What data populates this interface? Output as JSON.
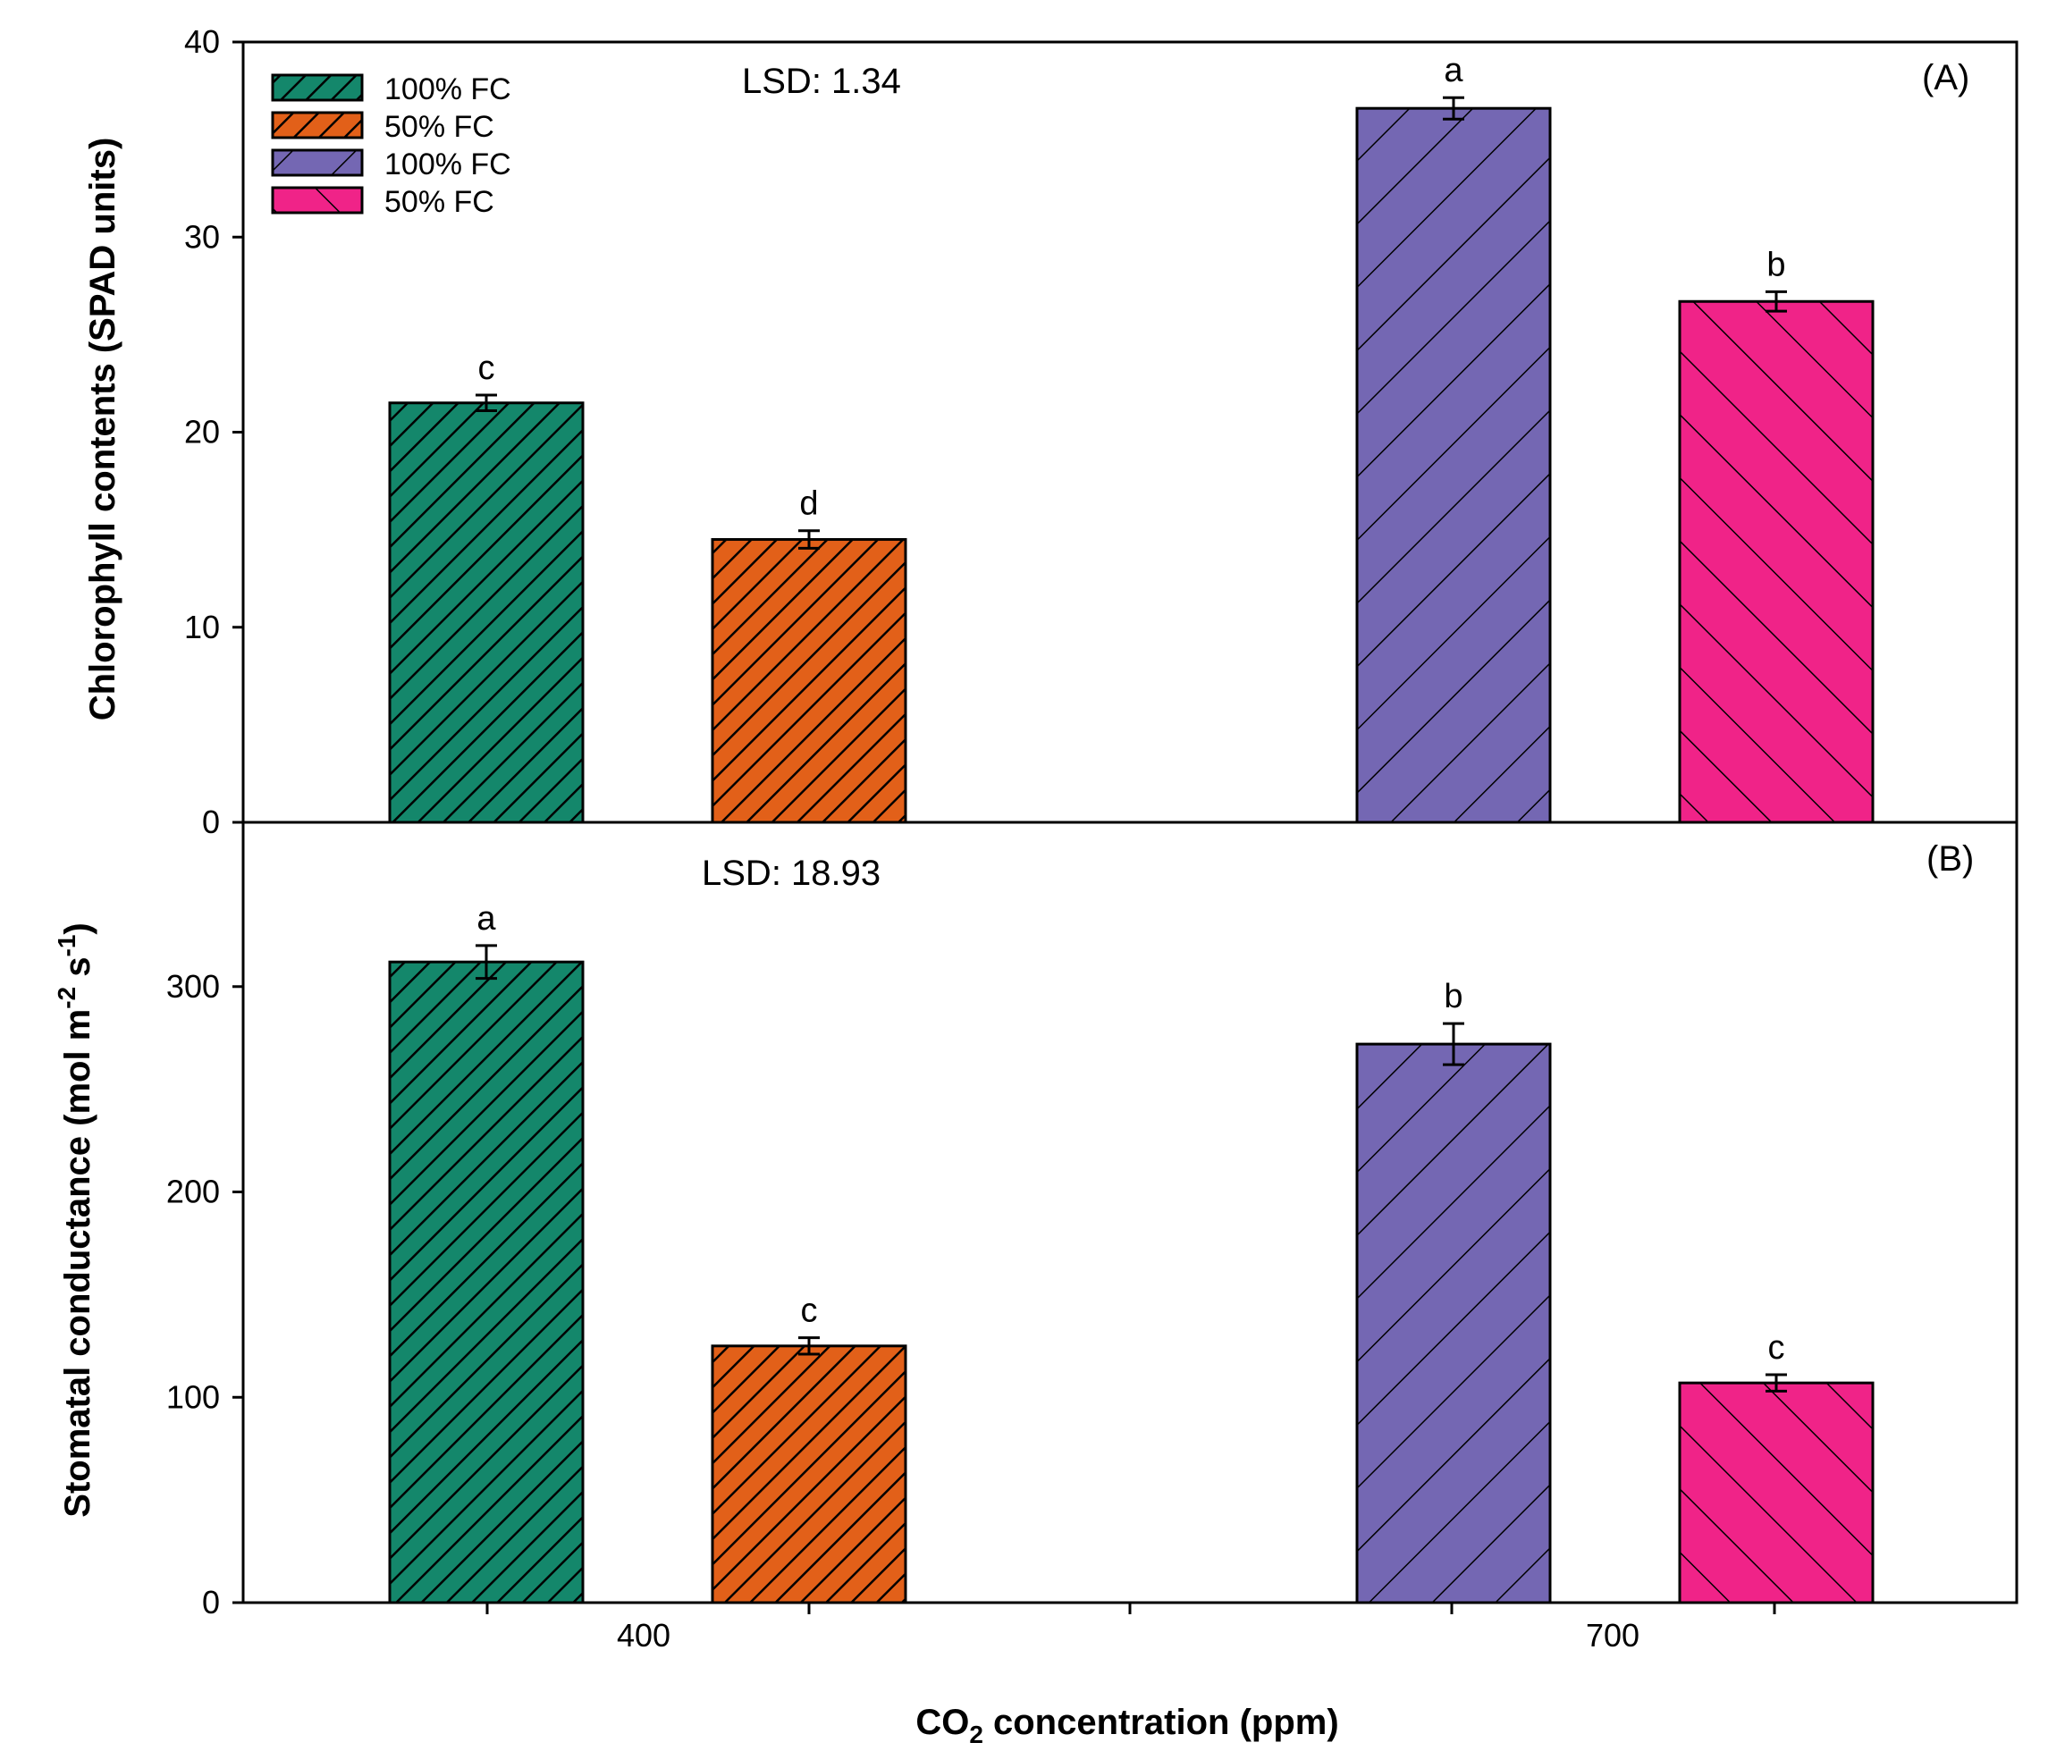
{
  "chart_data": [
    {
      "type": "bar",
      "panel_label": "(A)",
      "annotation": "LSD: 1.34",
      "categories": [
        "400",
        "700"
      ],
      "ylabel": "Chlorophyll contents (SPAD units)",
      "ylim": [
        0,
        40
      ],
      "yticks": [
        0,
        10,
        20,
        30,
        40
      ],
      "series": [
        {
          "name": "100% FC",
          "co2": "400",
          "value": 21.5,
          "error": 0.4,
          "letter": "c"
        },
        {
          "name": "50% FC",
          "co2": "400",
          "value": 14.5,
          "error": 0.45,
          "letter": "d"
        },
        {
          "name": "100% FC",
          "co2": "700",
          "value": 36.6,
          "error": 0.55,
          "letter": "a"
        },
        {
          "name": "50% FC",
          "co2": "700",
          "value": 26.7,
          "error": 0.5,
          "letter": "b"
        }
      ]
    },
    {
      "type": "bar",
      "panel_label": "(B)",
      "annotation": "LSD: 18.93",
      "categories": [
        "400",
        "700"
      ],
      "ylabel": {
        "main": "Stomatal conductance (mol m",
        "sup1": "-2",
        "mid": " s",
        "sup2": "-1",
        "end": ")"
      },
      "ylim": [
        0,
        380
      ],
      "yticks": [
        0,
        100,
        200,
        300
      ],
      "series": [
        {
          "name": "100% FC",
          "co2": "400",
          "value": 312,
          "error": 8,
          "letter": "a"
        },
        {
          "name": "50% FC",
          "co2": "400",
          "value": 125,
          "error": 4,
          "letter": "c"
        },
        {
          "name": "100% FC",
          "co2": "700",
          "value": 272,
          "error": 10,
          "letter": "b"
        },
        {
          "name": "50% FC",
          "co2": "700",
          "value": 107,
          "error": 4,
          "letter": "c"
        }
      ]
    }
  ],
  "legend": [
    {
      "label": "100% FC",
      "color": "#14876b",
      "pattern": "dense-diag"
    },
    {
      "label": "50% FC",
      "color": "#e26019",
      "pattern": "dense-diag"
    },
    {
      "label": "100% FC",
      "color": "#7467b3",
      "pattern": "sparse-diag"
    },
    {
      "label": "50% FC",
      "color": "#f02388",
      "pattern": "sparse-back-diag"
    }
  ],
  "xaxis": {
    "tick_labels": [
      "400",
      "700"
    ],
    "title_pre": "CO",
    "title_sub": "2",
    "title_post": " concentration (ppm)"
  }
}
